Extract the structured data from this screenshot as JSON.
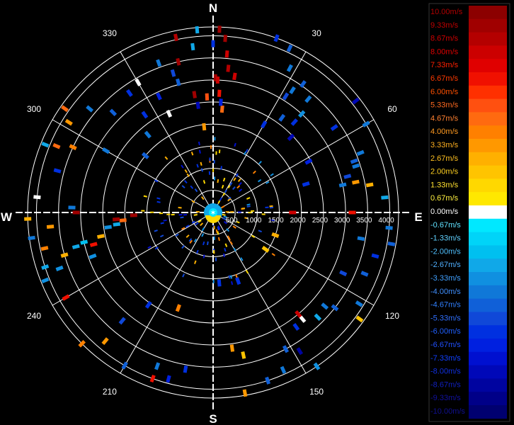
{
  "chart_data": {
    "type": "polar-scatter",
    "cardinals": {
      "north": "N",
      "east": "E",
      "south": "S",
      "west": "W"
    },
    "azimuth_labels": [
      "30",
      "60",
      "120",
      "150",
      "210",
      "240",
      "300",
      "330"
    ],
    "range_labels": [
      "500",
      "1000",
      "1500",
      "2000",
      "2500",
      "3000",
      "3500",
      "4000"
    ],
    "range_max": 4200,
    "legend": {
      "labels": [
        "10.00m/s",
        "9.33m/s",
        "8.67m/s",
        "8.00m/s",
        "7.33m/s",
        "6.67m/s",
        "6.00m/s",
        "5.33m/s",
        "4.67m/s",
        "4.00m/s",
        "3.33m/s",
        "2.67m/s",
        "2.00m/s",
        "1.33m/s",
        "0.67m/s",
        "0.00m/s",
        "-0.67m/s",
        "-1.33m/s",
        "-2.00m/s",
        "-2.67m/s",
        "-3.33m/s",
        "-4.00m/s",
        "-4.67m/s",
        "-5.33m/s",
        "-6.00m/s",
        "-6.67m/s",
        "-7.33m/s",
        "-8.00m/s",
        "-8.67m/s",
        "-9.33m/s",
        "-10.00m/s"
      ],
      "colors": [
        "#8c0000",
        "#a00000",
        "#b40000",
        "#cc0000",
        "#e00000",
        "#f01000",
        "#ff3000",
        "#ff5010",
        "#ff6a10",
        "#ff8000",
        "#ff9800",
        "#ffb000",
        "#ffc400",
        "#ffd800",
        "#ffe800",
        "#ffffff",
        "#00e8ff",
        "#00d4f8",
        "#00c0f0",
        "#10a8e8",
        "#1090e0",
        "#1078d8",
        "#1060d8",
        "#1048d8",
        "#0030e0",
        "#0020e0",
        "#0010d0",
        "#0008b8",
        "#0004a0",
        "#000088",
        "#000070"
      ],
      "text_colors": [
        "#b00000",
        "#c00000",
        "#d00000",
        "#e00000",
        "#ff2000",
        "#ff3a00",
        "#ff5000",
        "#ff6a20",
        "#ff8030",
        "#ff9a20",
        "#ffb020",
        "#ffc020",
        "#ffd020",
        "#ffe030",
        "#fff040",
        "#ffffff",
        "#60e0ff",
        "#60d0ff",
        "#50c0ff",
        "#50b0ff",
        "#40a0ff",
        "#4090ff",
        "#3080ff",
        "#3070ff",
        "#2060ff",
        "#2050ff",
        "#1040ff",
        "#1030e0",
        "#1020c0",
        "#1010a0",
        "#101090"
      ]
    },
    "gates": [
      {
        "az": 2,
        "r": 4150,
        "v": 9.5
      },
      {
        "az": 4,
        "r": 3950,
        "v": 9.0
      },
      {
        "az": 0,
        "r": 3820,
        "v": -6.0
      },
      {
        "az": -7,
        "r": 3780,
        "v": -2.7
      },
      {
        "az": 5,
        "r": 3600,
        "v": 8.0
      },
      {
        "az": -13,
        "r": 3500,
        "v": 9.3
      },
      {
        "az": 6,
        "r": 3280,
        "v": 8.7
      },
      {
        "az": 9,
        "r": 3120,
        "v": 8.0
      },
      {
        "az": 1,
        "r": 3050,
        "v": 9.3
      },
      {
        "az": 2,
        "r": 3000,
        "v": 8.0
      },
      {
        "az": 3,
        "r": 2700,
        "v": 6.7
      },
      {
        "az": -16,
        "r": 3280,
        "v": -5.3
      },
      {
        "az": -3,
        "r": 2620,
        "v": 5.3
      },
      {
        "az": -9,
        "r": 2700,
        "v": 9.3
      },
      {
        "az": 5,
        "r": 2350,
        "v": 4.7
      },
      {
        "az": -8,
        "r": 2450,
        "v": -8.0
      },
      {
        "az": 4,
        "r": 2500,
        "v": -6.7
      },
      {
        "az": -6,
        "r": 1950,
        "v": 3.3
      },
      {
        "az": -24,
        "r": 2450,
        "v": 0.0
      },
      {
        "az": 20,
        "r": 4200,
        "v": -6.0
      },
      {
        "az": 25,
        "r": 4100,
        "v": -4.7
      },
      {
        "az": 28,
        "r": 3700,
        "v": -4.0
      },
      {
        "az": 35,
        "r": 3550,
        "v": -4.7
      },
      {
        "az": 33,
        "r": 3300,
        "v": -4.0
      },
      {
        "az": 32,
        "r": 3100,
        "v": -5.3
      },
      {
        "az": 40,
        "r": 3350,
        "v": -4.0
      },
      {
        "az": 42,
        "r": 3000,
        "v": -3.3
      },
      {
        "az": 36,
        "r": 2650,
        "v": -4.7
      },
      {
        "az": 42,
        "r": 2750,
        "v": -6.0
      },
      {
        "az": 30,
        "r": 2300,
        "v": -6.0
      },
      {
        "az": 46,
        "r": 2450,
        "v": -8.0
      },
      {
        "az": 60,
        "r": 4000,
        "v": -4.0
      },
      {
        "az": 68,
        "r": 3600,
        "v": -4.0
      },
      {
        "az": 70,
        "r": 3400,
        "v": -4.7
      },
      {
        "az": 75,
        "r": 3150,
        "v": -5.3
      },
      {
        "az": 72,
        "r": 3400,
        "v": -4.0
      },
      {
        "az": 78,
        "r": 3000,
        "v": -4.0
      },
      {
        "az": 80,
        "r": 3600,
        "v": 2.7
      },
      {
        "az": 78,
        "r": 3300,
        "v": 3.3
      },
      {
        "az": 55,
        "r": 3350,
        "v": -6.0
      },
      {
        "az": 52,
        "r": 4100,
        "v": -8.0
      },
      {
        "az": 62,
        "r": 2450,
        "v": -6.7
      },
      {
        "az": 73,
        "r": 2200,
        "v": -6.0
      },
      {
        "az": 90,
        "r": 1800,
        "v": 8.0
      },
      {
        "az": 90,
        "r": 3150,
        "v": 6.7
      },
      {
        "az": 85,
        "r": 3900,
        "v": -2.7
      },
      {
        "az": 95,
        "r": 4000,
        "v": -4.0
      },
      {
        "az": 100,
        "r": 4100,
        "v": -4.7
      },
      {
        "az": 105,
        "r": 3800,
        "v": -6.0
      },
      {
        "az": 100,
        "r": 3400,
        "v": -4.0
      },
      {
        "az": 112,
        "r": 3700,
        "v": -4.7
      },
      {
        "az": 115,
        "r": 3250,
        "v": -5.3
      },
      {
        "az": 130,
        "r": 3300,
        "v": -4.0
      },
      {
        "az": 128,
        "r": 3500,
        "v": -4.7
      },
      {
        "az": 135,
        "r": 3350,
        "v": -2.7
      },
      {
        "az": 122,
        "r": 3900,
        "v": -4.0
      },
      {
        "az": 126,
        "r": 4100,
        "v": 2.0
      },
      {
        "az": 140,
        "r": 3150,
        "v": 0.0
      },
      {
        "az": 140,
        "r": 3000,
        "v": 8.0
      },
      {
        "az": 144,
        "r": 3200,
        "v": -6.0
      },
      {
        "az": 152,
        "r": 3500,
        "v": -4.7
      },
      {
        "az": 148,
        "r": 3700,
        "v": -8.7
      },
      {
        "az": 146,
        "r": 4200,
        "v": -3.3
      },
      {
        "az": 156,
        "r": 3900,
        "v": -4.0
      },
      {
        "az": 162,
        "r": 4000,
        "v": -4.7
      },
      {
        "az": 170,
        "r": 4150,
        "v": 3.3
      },
      {
        "az": 168,
        "r": 3300,
        "v": 2.0
      },
      {
        "az": 172,
        "r": 3100,
        "v": 3.3
      },
      {
        "az": 110,
        "r": 1500,
        "v": 2.7
      },
      {
        "az": 125,
        "r": 1450,
        "v": 2.0
      },
      {
        "az": 160,
        "r": 1650,
        "v": -6.0
      },
      {
        "az": 175,
        "r": 1600,
        "v": -6.0
      },
      {
        "az": 190,
        "r": 3600,
        "v": -6.0
      },
      {
        "az": 195,
        "r": 3900,
        "v": -6.7
      },
      {
        "az": 200,
        "r": 3700,
        "v": -4.0
      },
      {
        "az": 200,
        "r": 4000,
        "v": 6.7
      },
      {
        "az": 210,
        "r": 4000,
        "v": -4.7
      },
      {
        "az": 220,
        "r": 3800,
        "v": 3.3
      },
      {
        "az": 225,
        "r": 4200,
        "v": 4.0
      },
      {
        "az": 220,
        "r": 3200,
        "v": -5.3
      },
      {
        "az": 215,
        "r": 2550,
        "v": -6.0
      },
      {
        "az": 200,
        "r": 2300,
        "v": 4.0
      },
      {
        "az": 240,
        "r": 3850,
        "v": 6.7
      },
      {
        "az": 248,
        "r": 4100,
        "v": -3.3
      },
      {
        "az": 252,
        "r": 4000,
        "v": -2.7
      },
      {
        "az": 250,
        "r": 3700,
        "v": -3.3
      },
      {
        "az": 254,
        "r": 3500,
        "v": 2.7
      },
      {
        "az": 256,
        "r": 3200,
        "v": -2.7
      },
      {
        "az": 257,
        "r": 3000,
        "v": -2.0
      },
      {
        "az": 250,
        "r": 2900,
        "v": -3.3
      },
      {
        "az": 258,
        "r": 2600,
        "v": 2.7
      },
      {
        "az": 262,
        "r": 2400,
        "v": -3.3
      },
      {
        "az": 263,
        "r": 2200,
        "v": -2.7
      },
      {
        "az": 265,
        "r": 2050,
        "v": 4.7
      },
      {
        "az": 255,
        "r": 2800,
        "v": 6.7
      },
      {
        "az": 258,
        "r": 3900,
        "v": 4.0
      },
      {
        "az": 262,
        "r": 4150,
        "v": -4.0
      },
      {
        "az": 265,
        "r": 3700,
        "v": 3.3
      },
      {
        "az": 268,
        "r": 4200,
        "v": 2.7
      },
      {
        "az": 272,
        "r": 3200,
        "v": -4.0
      },
      {
        "az": 270,
        "r": 3100,
        "v": 9.3
      },
      {
        "az": 268,
        "r": 1800,
        "v": 9.3
      },
      {
        "az": 266,
        "r": 2200,
        "v": 9.3
      },
      {
        "az": 275,
        "r": 4000,
        "v": 0.0
      },
      {
        "az": 285,
        "r": 3650,
        "v": -6.0
      },
      {
        "az": 292,
        "r": 4100,
        "v": -2.7
      },
      {
        "az": 293,
        "r": 3850,
        "v": 4.7
      },
      {
        "az": 295,
        "r": 3500,
        "v": 4.0
      },
      {
        "az": 302,
        "r": 3850,
        "v": 3.3
      },
      {
        "az": 305,
        "r": 4100,
        "v": 4.7
      },
      {
        "az": 310,
        "r": 3650,
        "v": -4.0
      },
      {
        "az": 300,
        "r": 2800,
        "v": -4.0
      },
      {
        "az": 315,
        "r": 3200,
        "v": -4.7
      },
      {
        "az": 325,
        "r": 3300,
        "v": -6.0
      },
      {
        "az": 330,
        "r": 3400,
        "v": 0.0
      },
      {
        "az": 340,
        "r": 3600,
        "v": -4.0
      },
      {
        "az": 348,
        "r": 4050,
        "v": 8.7
      },
      {
        "az": 355,
        "r": 4150,
        "v": -2.7
      },
      {
        "az": 345,
        "r": 3050,
        "v": -4.7
      },
      {
        "az": 335,
        "r": 2900,
        "v": -6.7
      },
      {
        "az": 325,
        "r": 2700,
        "v": -6.0
      },
      {
        "az": 320,
        "r": 2300,
        "v": -4.0
      },
      {
        "az": 310,
        "r": 2000,
        "v": -4.7
      }
    ]
  }
}
